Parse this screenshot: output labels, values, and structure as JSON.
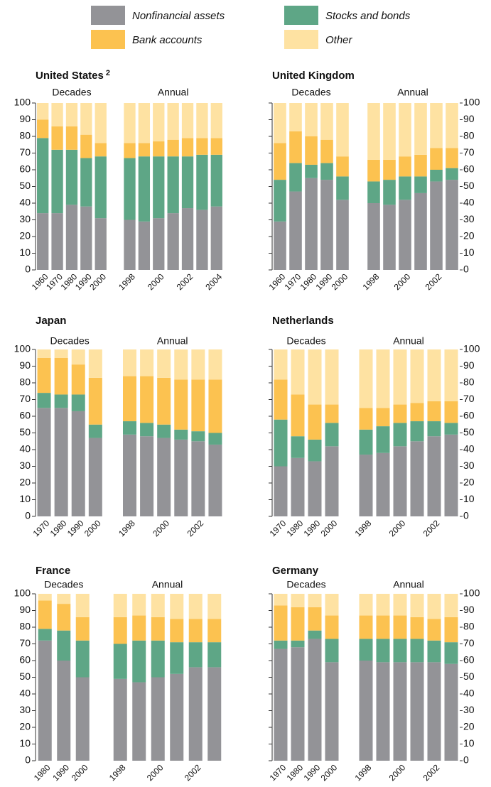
{
  "chart_data": [
    {
      "type": "stacked_bar",
      "title": "United States",
      "title_superscript": "2",
      "groups": [
        "Decades",
        "Annual"
      ],
      "y_axis_side": "left",
      "categories": [
        "1960",
        "1970",
        "1980",
        "1990",
        "2000",
        "1998",
        null,
        "2000",
        null,
        "2002",
        null,
        "2004"
      ],
      "ylim": [
        0,
        100
      ],
      "yticks": [
        0,
        10,
        20,
        30,
        40,
        50,
        60,
        70,
        80,
        90,
        100
      ],
      "series": [
        {
          "name": "Nonfinancial assets",
          "color": "#939397",
          "values": [
            34,
            34,
            39,
            38,
            31,
            30,
            29,
            31,
            34,
            37,
            36,
            38
          ]
        },
        {
          "name": "Stocks and bonds",
          "color": "#5ea686",
          "values": [
            45,
            38,
            33,
            29,
            37,
            37,
            39,
            37,
            34,
            31,
            33,
            31
          ]
        },
        {
          "name": "Bank accounts",
          "color": "#fcc250",
          "values": [
            11,
            14,
            14,
            14,
            8,
            9,
            8,
            9,
            10,
            11,
            10,
            10
          ]
        },
        {
          "name": "Other",
          "color": "#fee2a2",
          "values": [
            10,
            14,
            14,
            19,
            24,
            24,
            24,
            23,
            22,
            21,
            21,
            21
          ]
        }
      ]
    },
    {
      "type": "stacked_bar",
      "title": "United Kingdom",
      "groups": [
        "Decades",
        "Annual"
      ],
      "y_axis_side": "right",
      "categories": [
        "1960",
        "1970",
        "1980",
        "1990",
        "2000",
        "1998",
        null,
        "2000",
        null,
        "2002",
        null
      ],
      "ylim": [
        0,
        100
      ],
      "yticks": [
        0,
        10,
        20,
        30,
        40,
        50,
        60,
        70,
        80,
        90,
        100
      ],
      "series": [
        {
          "name": "Nonfinancial assets",
          "color": "#939397",
          "values": [
            29,
            47,
            55,
            54,
            42,
            40,
            39,
            42,
            46,
            53,
            54
          ]
        },
        {
          "name": "Stocks and bonds",
          "color": "#5ea686",
          "values": [
            25,
            17,
            8,
            10,
            14,
            13,
            15,
            14,
            10,
            7,
            7
          ]
        },
        {
          "name": "Bank accounts",
          "color": "#fcc250",
          "values": [
            22,
            19,
            17,
            14,
            12,
            13,
            12,
            12,
            13,
            13,
            12
          ]
        },
        {
          "name": "Other",
          "color": "#fee2a2",
          "values": [
            24,
            17,
            20,
            22,
            32,
            34,
            34,
            32,
            31,
            27,
            27
          ]
        }
      ]
    },
    {
      "type": "stacked_bar",
      "title": "Japan",
      "groups": [
        "Decades",
        "Annual"
      ],
      "y_axis_side": "left",
      "categories": [
        "1970",
        "1980",
        "1990",
        "2000",
        "1998",
        null,
        "2000",
        null,
        "2002",
        null
      ],
      "ylim": [
        0,
        100
      ],
      "yticks": [
        0,
        10,
        20,
        30,
        40,
        50,
        60,
        70,
        80,
        90,
        100
      ],
      "series": [
        {
          "name": "Nonfinancial assets",
          "color": "#939397",
          "values": [
            65,
            65,
            63,
            47,
            49,
            48,
            47,
            46,
            45,
            43
          ]
        },
        {
          "name": "Stocks and bonds",
          "color": "#5ea686",
          "values": [
            9,
            8,
            10,
            8,
            8,
            8,
            8,
            6,
            6,
            7
          ]
        },
        {
          "name": "Bank accounts",
          "color": "#fcc250",
          "values": [
            21,
            22,
            18,
            28,
            27,
            28,
            28,
            30,
            31,
            32
          ]
        },
        {
          "name": "Other",
          "color": "#fee2a2",
          "values": [
            5,
            5,
            9,
            17,
            16,
            16,
            17,
            18,
            18,
            18
          ]
        }
      ]
    },
    {
      "type": "stacked_bar",
      "title": "Netherlands",
      "groups": [
        "Decades",
        "Annual"
      ],
      "y_axis_side": "right",
      "categories": [
        "1970",
        "1980",
        "1990",
        "2000",
        "1998",
        null,
        "2000",
        null,
        "2002",
        null
      ],
      "ylim": [
        0,
        100
      ],
      "yticks": [
        0,
        10,
        20,
        30,
        40,
        50,
        60,
        70,
        80,
        90,
        100
      ],
      "series": [
        {
          "name": "Nonfinancial assets",
          "color": "#939397",
          "values": [
            30,
            35,
            33,
            42,
            37,
            38,
            42,
            45,
            48,
            49
          ]
        },
        {
          "name": "Stocks and bonds",
          "color": "#5ea686",
          "values": [
            28,
            13,
            13,
            14,
            15,
            16,
            14,
            12,
            9,
            7
          ]
        },
        {
          "name": "Bank accounts",
          "color": "#fcc250",
          "values": [
            24,
            25,
            21,
            11,
            13,
            11,
            11,
            11,
            12,
            13
          ]
        },
        {
          "name": "Other",
          "color": "#fee2a2",
          "values": [
            18,
            27,
            33,
            33,
            35,
            35,
            33,
            32,
            31,
            31
          ]
        }
      ]
    },
    {
      "type": "stacked_bar",
      "title": "France",
      "groups": [
        "Decades",
        "Annual"
      ],
      "y_axis_side": "left",
      "categories": [
        "1980",
        "1990",
        "2000",
        "1998",
        null,
        "2000",
        null,
        "2002",
        null
      ],
      "ylim": [
        0,
        100
      ],
      "yticks": [
        0,
        10,
        20,
        30,
        40,
        50,
        60,
        70,
        80,
        90,
        100
      ],
      "series": [
        {
          "name": "Nonfinancial assets",
          "color": "#939397",
          "values": [
            72,
            60,
            50,
            49,
            47,
            50,
            52,
            56,
            56
          ]
        },
        {
          "name": "Stocks and bonds",
          "color": "#5ea686",
          "values": [
            7,
            18,
            22,
            21,
            25,
            22,
            19,
            15,
            15
          ]
        },
        {
          "name": "Bank accounts",
          "color": "#fcc250",
          "values": [
            17,
            16,
            14,
            16,
            15,
            14,
            14,
            14,
            14
          ]
        },
        {
          "name": "Other",
          "color": "#fee2a2",
          "values": [
            4,
            6,
            14,
            14,
            13,
            14,
            15,
            15,
            15
          ]
        }
      ]
    },
    {
      "type": "stacked_bar",
      "title": "Germany",
      "groups": [
        "Decades",
        "Annual"
      ],
      "y_axis_side": "right",
      "categories": [
        "1970",
        "1980",
        "1990",
        "2000",
        "1998",
        null,
        "2000",
        null,
        "2002",
        null
      ],
      "ylim": [
        0,
        100
      ],
      "yticks": [
        0,
        10,
        20,
        30,
        40,
        50,
        60,
        70,
        80,
        90,
        100
      ],
      "series": [
        {
          "name": "Nonfinancial assets",
          "color": "#939397",
          "values": [
            67,
            68,
            73,
            59,
            60,
            59,
            59,
            59,
            59,
            58
          ]
        },
        {
          "name": "Stocks and bonds",
          "color": "#5ea686",
          "values": [
            5,
            4,
            5,
            14,
            13,
            14,
            14,
            14,
            13,
            13
          ]
        },
        {
          "name": "Bank accounts",
          "color": "#fcc250",
          "values": [
            21,
            20,
            14,
            14,
            14,
            14,
            14,
            13,
            13,
            15
          ]
        },
        {
          "name": "Other",
          "color": "#fee2a2",
          "values": [
            7,
            8,
            8,
            13,
            13,
            13,
            13,
            14,
            15,
            14
          ]
        }
      ]
    }
  ]
}
